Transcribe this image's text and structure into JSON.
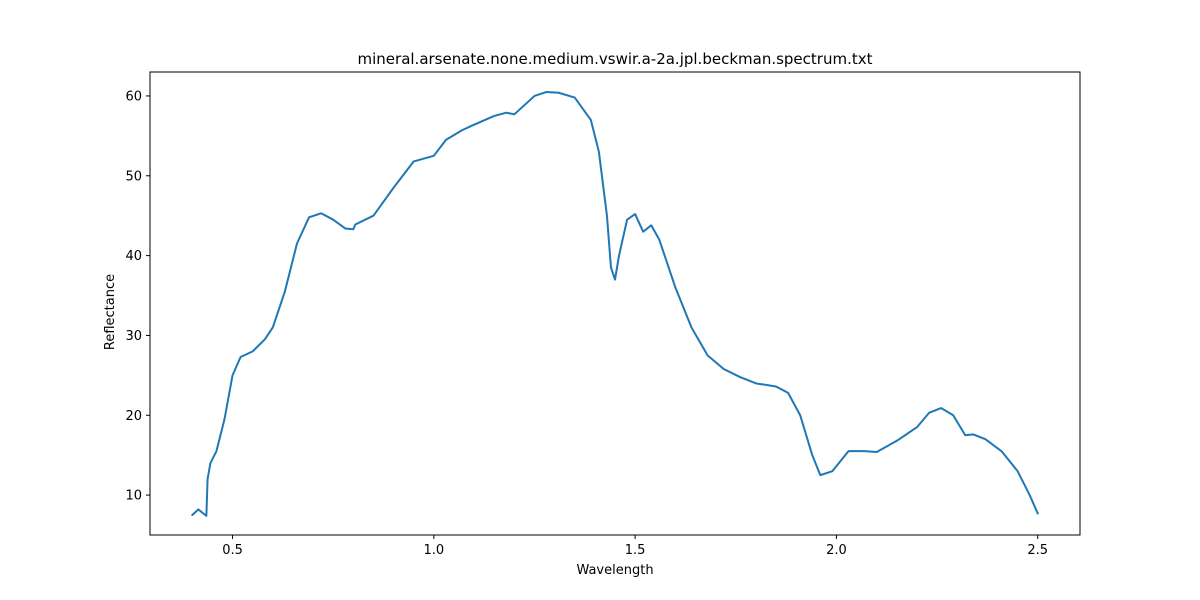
{
  "chart_data": {
    "type": "line",
    "title": "mineral.arsenate.none.medium.vswir.a-2a.jpl.beckman.spectrum.txt",
    "xlabel": "Wavelength",
    "ylabel": "Reflectance",
    "xlim": [
      0.295,
      2.605
    ],
    "ylim": [
      5.0,
      63.0
    ],
    "xticks": [
      0.5,
      1.0,
      1.5,
      2.0,
      2.5
    ],
    "xtick_labels": [
      "0.5",
      "1.0",
      "1.5",
      "2.0",
      "2.5"
    ],
    "yticks": [
      10,
      20,
      30,
      40,
      50,
      60
    ],
    "ytick_labels": [
      "10",
      "20",
      "30",
      "40",
      "50",
      "60"
    ],
    "grid": false,
    "series": [
      {
        "color": "#1f77b4",
        "x": [
          0.4,
          0.415,
          0.425,
          0.435,
          0.438,
          0.445,
          0.46,
          0.48,
          0.5,
          0.52,
          0.55,
          0.58,
          0.6,
          0.63,
          0.66,
          0.69,
          0.72,
          0.75,
          0.78,
          0.8,
          0.805,
          0.85,
          0.9,
          0.95,
          1.0,
          1.03,
          1.07,
          1.1,
          1.15,
          1.18,
          1.2,
          1.25,
          1.28,
          1.31,
          1.35,
          1.39,
          1.41,
          1.43,
          1.44,
          1.45,
          1.46,
          1.48,
          1.5,
          1.52,
          1.54,
          1.56,
          1.6,
          1.64,
          1.68,
          1.72,
          1.76,
          1.8,
          1.85,
          1.88,
          1.91,
          1.94,
          1.96,
          1.99,
          2.03,
          2.07,
          2.1,
          2.15,
          2.2,
          2.23,
          2.26,
          2.29,
          2.32,
          2.34,
          2.37,
          2.41,
          2.45,
          2.48,
          2.5
        ],
        "y": [
          7.5,
          8.2,
          7.8,
          7.4,
          12.0,
          14.0,
          15.5,
          19.5,
          25.0,
          27.3,
          28.0,
          29.5,
          31.0,
          35.5,
          41.5,
          44.8,
          45.3,
          44.5,
          43.4,
          43.3,
          43.9,
          45.0,
          48.5,
          51.8,
          52.5,
          54.5,
          55.7,
          56.4,
          57.5,
          57.9,
          57.7,
          60.0,
          60.5,
          60.4,
          59.8,
          57.0,
          53.0,
          45.0,
          38.5,
          37.0,
          40.0,
          44.5,
          45.2,
          43.0,
          43.8,
          42.0,
          36.0,
          31.0,
          27.5,
          25.8,
          24.8,
          24.0,
          23.6,
          22.8,
          20.0,
          15.0,
          12.5,
          13.0,
          15.5,
          15.5,
          15.4,
          16.8,
          18.5,
          20.3,
          20.9,
          20.0,
          17.5,
          17.6,
          17.0,
          15.5,
          13.0,
          10.0,
          7.7
        ]
      }
    ]
  }
}
